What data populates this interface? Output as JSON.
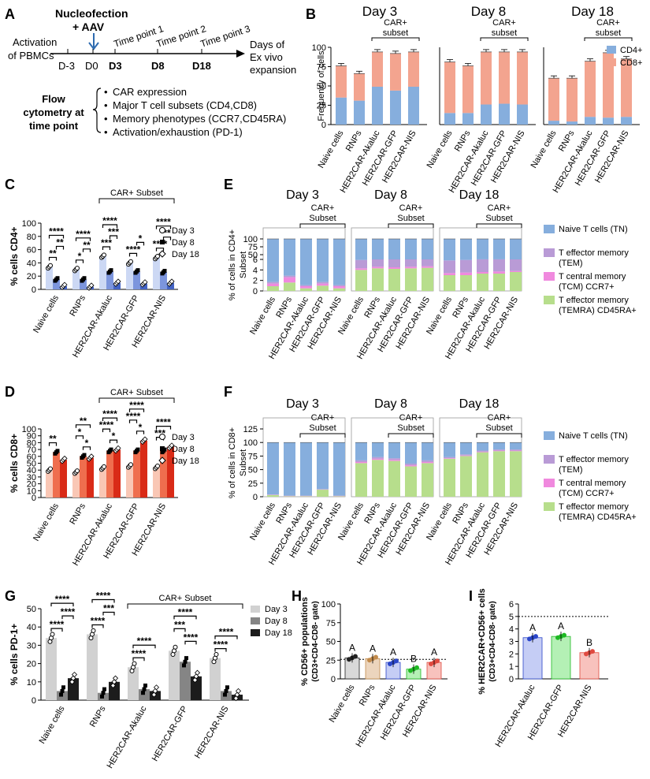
{
  "panel_letters": [
    "A",
    "B",
    "C",
    "D",
    "E",
    "F",
    "G",
    "H",
    "I"
  ],
  "colors": {
    "cd4": "#86aedd",
    "cd8": "#f3a48f",
    "tn": "#86aedd",
    "tem": "#b99bd6",
    "tcm": "#f089de",
    "temra": "#b7de8c",
    "d3_light_blue": "#ccd8f4",
    "d8_mid_blue": "#7c95dd",
    "d18_dark_blue": "#4363c4",
    "d3_light_red": "#f9c7b5",
    "d8_mid_red": "#ef6e4e",
    "d18_dark_red": "#d92b17",
    "gray3": "#d1d1d1",
    "gray8": "#858585",
    "gray18": "#1c1c1c",
    "h_naive": "#d9d9d9",
    "h_rnps": "#ecd5bd",
    "h_akaluc": "#c5cdf5",
    "h_gfp": "#b4f0b5",
    "h_nis": "#f8c2bd",
    "h_naive_dot": "#222",
    "h_rnps_dot": "#c28b4c",
    "h_akaluc_dot": "#2b46c9",
    "h_gfp_dot": "#1fb924",
    "h_nis_dot": "#e04a40"
  },
  "panel_a": {
    "nucleofection": [
      "Nucleofection",
      "+ AAV"
    ],
    "activation": [
      "Activation",
      "of PBMCs"
    ],
    "timepoints": [
      "Time point 1",
      "Time point  2",
      "Time point 3"
    ],
    "days": [
      "D-3",
      "D0",
      "D3",
      "D8",
      "D18"
    ],
    "expansion": [
      "Days of",
      "Ex vivo",
      "expansion"
    ],
    "flow_label": [
      "Flow",
      "cytometry at",
      "time point"
    ],
    "bullets": [
      "CAR expression",
      "Major T cell subsets (CD4,CD8)",
      "Memory phenotypes (CCR7,CD45RA)",
      "Activation/exhaustion (PD-1)"
    ]
  },
  "chart_data": [
    {
      "panel": "B",
      "type": "bar",
      "stacked": true,
      "facets": [
        "Day 3",
        "Day 8",
        "Day 18"
      ],
      "subset_label": [
        "CAR+",
        "subset"
      ],
      "categories": [
        "Naive cells",
        "RNPs",
        "HER2CAR-Akaluc",
        "HER2CAR-GFP",
        "HER2CAR-NIS"
      ],
      "ylabel": "Frequency of cells",
      "ylim": [
        0,
        100
      ],
      "yticks": [
        0,
        25,
        50,
        75,
        100
      ],
      "legend": [
        "CD4+",
        "CD8+"
      ],
      "series": [
        {
          "name": "CD4+",
          "values": [
            [
              35,
              31,
              49,
              44,
              49
            ],
            [
              15,
              15,
              26,
              27,
              26
            ],
            [
              5,
              4,
              10,
              9,
              10
            ]
          ]
        },
        {
          "name": "CD8+",
          "values": [
            [
              41,
              35,
              45,
              48,
              45
            ],
            [
              66,
              61,
              68,
              67,
              68
            ],
            [
              55,
              56,
              72,
              84,
              75
            ]
          ]
        }
      ],
      "totals": [
        [
          76,
          66,
          94,
          92,
          94
        ],
        [
          81,
          76,
          94,
          94,
          94
        ],
        [
          60,
          60,
          82,
          93,
          85
        ]
      ]
    },
    {
      "panel": "C",
      "type": "bar",
      "ylabel": "% cells CD4+",
      "ylim": [
        0,
        100
      ],
      "yticks": [
        0,
        20,
        40,
        60,
        80,
        100
      ],
      "subset_label": "CAR+ Subset",
      "categories": [
        "Naive cells",
        "RNPs",
        "HER2CAR-Akaluc",
        "HER2CAR-GFP",
        "HER2CAR-NIS"
      ],
      "legend": [
        "Day 3",
        "Day 8",
        "Day 18"
      ],
      "series": [
        {
          "name": "Day 3",
          "values": [
            34,
            30,
            50,
            40,
            48
          ]
        },
        {
          "name": "Day 8",
          "values": [
            15,
            15,
            27,
            27,
            26
          ]
        },
        {
          "name": "Day 18",
          "values": [
            5,
            4,
            10,
            9,
            10
          ]
        }
      ],
      "significance": [
        {
          "label": "****",
          "bracket": "Naive cells D3-D18"
        },
        {
          "label": "**",
          "bracket": "Naive cells D8-D18"
        },
        {
          "label": "**",
          "bracket": "Naive cells D3-D8"
        },
        {
          "label": "****",
          "bracket": "RNPs D3-D18"
        },
        {
          "label": "**",
          "bracket": "RNPs D8-D18"
        },
        {
          "label": "*",
          "bracket": "RNPs D3-D8"
        },
        {
          "label": "****",
          "bracket": "HER2CAR-Akaluc D3-D18"
        },
        {
          "label": "***",
          "bracket": "HER2CAR-Akaluc D8-D18"
        },
        {
          "label": "***",
          "bracket": "HER2CAR-Akaluc D3-D8"
        },
        {
          "label": "*",
          "bracket": "HER2CAR-GFP D8-D18"
        },
        {
          "label": "****",
          "bracket": "HER2CAR-GFP D3-D8"
        },
        {
          "label": "****",
          "bracket": "HER2CAR-NIS D3-D18"
        },
        {
          "label": "**",
          "bracket": "HER2CAR-NIS D8-D18"
        },
        {
          "label": "****",
          "bracket": "HER2CAR-NIS D3-D8"
        }
      ]
    },
    {
      "panel": "D",
      "type": "bar",
      "ylabel": "% cells CD8+",
      "ylim": [
        0,
        100
      ],
      "yticks": [
        0,
        10,
        20,
        30,
        40,
        50,
        60,
        70,
        80,
        90,
        100
      ],
      "subset_label": "CAR+ Subset",
      "categories": [
        "Naive cells",
        "RNPs",
        "HER2CAR-Akaluc",
        "HER2CAR-GFP",
        "HER2CAR-NIS"
      ],
      "legend": [
        "Day 3",
        "Day 8",
        "Day 18"
      ],
      "series": [
        {
          "name": "Day 3",
          "values": [
            40,
            37,
            43,
            46,
            44
          ]
        },
        {
          "name": "Day 8",
          "values": [
            66,
            60,
            68,
            68,
            68
          ]
        },
        {
          "name": "Day 18",
          "values": [
            55,
            58,
            70,
            83,
            74
          ]
        }
      ],
      "significance": [
        {
          "label": "**",
          "bracket": "Naive cells D3-D8"
        },
        {
          "label": "**",
          "bracket": "RNPs D3-D18"
        },
        {
          "label": "*",
          "bracket": "RNPs D3-D8"
        },
        {
          "label": "*",
          "bracket": "RNPs D8-D18"
        },
        {
          "label": "****",
          "bracket": "HER2CAR-Akaluc D3-D18"
        },
        {
          "label": "****",
          "bracket": "HER2CAR-Akaluc D3-D8"
        },
        {
          "label": "*",
          "bracket": "HER2CAR-Akaluc D8-D18"
        },
        {
          "label": "****",
          "bracket": "HER2CAR-GFP D3-D18"
        },
        {
          "label": "****",
          "bracket": "HER2CAR-GFP D3-D8"
        },
        {
          "label": "*",
          "bracket": "HER2CAR-GFP D8-D18"
        },
        {
          "label": "****",
          "bracket": "HER2CAR-NIS D3-D18"
        },
        {
          "label": "***",
          "bracket": "HER2CAR-NIS D3-D8"
        }
      ]
    },
    {
      "panel": "E",
      "type": "bar",
      "stacked": true,
      "broken_axis": true,
      "facets": [
        "Day 3",
        "Day 8",
        "Day 18"
      ],
      "subset_label": [
        "CAR+",
        "Subset"
      ],
      "categories": [
        "Naive cells",
        "RNPs",
        "HER2CAR-Akaluc",
        "HER2CAR-GFP",
        "HER2CAR-NIS"
      ],
      "ylabel": [
        "% of cells in CD4+",
        "Subset"
      ],
      "ylim_lower": [
        0,
        6
      ],
      "ylim_upper": [
        50,
        100
      ],
      "yticks": [
        0,
        2,
        4,
        6,
        50,
        75,
        100
      ],
      "legend": [
        [
          "Naive T cells (TN)"
        ],
        [
          "T effector memory",
          "(TEM)"
        ],
        [
          "T central memory",
          "(TCM) CCR7+"
        ],
        [
          "T effector memory",
          "(TEMRA) CD45RA+"
        ]
      ],
      "series_order": [
        "TEMRA",
        "TCM",
        "TEM",
        "TN"
      ],
      "values": [
        [
          [
            0.9,
            0.5,
            0.3,
            98.3
          ],
          [
            1.6,
            1.0,
            0.3,
            97.1
          ],
          [
            0.5,
            0.4,
            0.2,
            98.9
          ],
          [
            1.0,
            0.4,
            0.3,
            98.3
          ],
          [
            0.5,
            0.4,
            0.2,
            98.9
          ]
        ],
        [
          [
            4.0,
            0.3,
            1.6,
            94.1
          ],
          [
            4.3,
            0.3,
            1.5,
            93.9
          ],
          [
            4.2,
            0.3,
            1.5,
            94.0
          ],
          [
            4.3,
            0.3,
            1.5,
            93.9
          ],
          [
            4.4,
            0.3,
            1.4,
            93.9
          ]
        ],
        [
          [
            3.0,
            0.4,
            2.4,
            94.2
          ],
          [
            3.0,
            0.5,
            2.4,
            94.1
          ],
          [
            3.3,
            0.3,
            2.9,
            93.5
          ],
          [
            3.3,
            0.4,
            2.8,
            93.5
          ],
          [
            3.6,
            0.2,
            2.2,
            94.0
          ]
        ]
      ]
    },
    {
      "panel": "F",
      "type": "bar",
      "stacked": true,
      "facets": [
        "Day 3",
        "Day 8",
        "Day 18"
      ],
      "subset_label": [
        "CAR+",
        "Subset"
      ],
      "categories": [
        "Naive cells",
        "RNPs",
        "HER2CAR-Akaluc",
        "HER2CAR-GFP",
        "HER2CAR-NIS"
      ],
      "ylabel": [
        "% of cells in CD8+",
        "Subset"
      ],
      "ylim": [
        0,
        125
      ],
      "yticks": [
        0,
        25,
        50,
        75,
        100,
        125
      ],
      "legend": [
        [
          "Naive T cells (TN)"
        ],
        [
          "T effector memory",
          "(TEM)"
        ],
        [
          "T central memory",
          "(TCM) CCR7+"
        ],
        [
          "T effector memory",
          "(TEMRA) CD45RA+"
        ]
      ],
      "series_order": [
        "TEMRA",
        "TCM",
        "TEM",
        "TN"
      ],
      "values": [
        [
          [
            3,
            0.5,
            0.5,
            96
          ],
          [
            1,
            0.5,
            0.5,
            98
          ],
          [
            1,
            0.5,
            0.5,
            98
          ],
          [
            13,
            0.5,
            0.5,
            86
          ],
          [
            1,
            0.5,
            0.5,
            98
          ]
        ],
        [
          [
            62,
            2,
            3,
            33
          ],
          [
            68,
            2,
            3,
            27
          ],
          [
            66,
            2,
            3,
            29
          ],
          [
            56,
            2,
            3,
            39
          ],
          [
            62,
            2,
            3,
            33
          ]
        ],
        [
          [
            70,
            1,
            2,
            27
          ],
          [
            75,
            1,
            2,
            22
          ],
          [
            82,
            1,
            2,
            15
          ],
          [
            84,
            1,
            2,
            13
          ],
          [
            84,
            1,
            2,
            13
          ]
        ]
      ]
    },
    {
      "panel": "G",
      "type": "bar",
      "ylabel": "% cells PD-1+",
      "ylim": [
        0,
        50
      ],
      "yticks": [
        0,
        10,
        20,
        30,
        40,
        50
      ],
      "subset_label": "CAR+ Subset",
      "categories": [
        "Naive cells",
        "RNPs",
        "HER2CAR-Akaluc",
        "HER2CAR-GFP",
        "HER2CAR-NIS"
      ],
      "legend": [
        "Day 3",
        "Day 8",
        "Day 18"
      ],
      "series": [
        {
          "name": "Day 3",
          "values": [
            34,
            36,
            18,
            27,
            23
          ]
        },
        {
          "name": "Day 8",
          "values": [
            5,
            4,
            6,
            21,
            5
          ]
        },
        {
          "name": "Day 18",
          "values": [
            12,
            10,
            5,
            13,
            3
          ]
        }
      ],
      "significance": [
        {
          "label": "****",
          "bracket": "Naive cells D3-D18"
        },
        {
          "label": "****",
          "bracket": "Naive cells D8-D18"
        },
        {
          "label": "****",
          "bracket": "Naive cells D3-D8"
        },
        {
          "label": "****",
          "bracket": "RNPs D3-D18"
        },
        {
          "label": "***",
          "bracket": "RNPs D8-D18"
        },
        {
          "label": "****",
          "bracket": "RNPs D3-D8"
        },
        {
          "label": "****",
          "bracket": "HER2CAR-Akaluc D3-D18"
        },
        {
          "label": "****",
          "bracket": "HER2CAR-Akaluc D3-D8"
        },
        {
          "label": "****",
          "bracket": "HER2CAR-GFP D3-D18"
        },
        {
          "label": "***",
          "bracket": "HER2CAR-GFP D3-D8"
        },
        {
          "label": "****",
          "bracket": "HER2CAR-GFP D8-D18"
        },
        {
          "label": "****",
          "bracket": "HER2CAR-NIS D3-D18"
        },
        {
          "label": "****",
          "bracket": "HER2CAR-NIS D3-D8"
        }
      ]
    },
    {
      "panel": "H",
      "type": "bar",
      "ylabel": [
        "% CD56+ populations",
        "(CD3+CD4-CD8- gate)"
      ],
      "ylim": [
        0,
        100
      ],
      "yticks": [
        0,
        25,
        50,
        75,
        100
      ],
      "reference_line": 26,
      "categories": [
        "Naive cells",
        "RNPs",
        "HER2CAR-Akaluc",
        "HER2CAR-GFP",
        "HER2CAR-NIS"
      ],
      "values": [
        28,
        27,
        22,
        13,
        22
      ],
      "group_letters": [
        "A",
        "A",
        "A",
        "B",
        "A"
      ]
    },
    {
      "panel": "I",
      "type": "bar",
      "ylabel": [
        "% HER2CAR+CD56+ cells",
        "(CD3+CD4-CD8- gate)"
      ],
      "ylim": [
        0,
        6
      ],
      "yticks": [
        0,
        1,
        2,
        3,
        4,
        5,
        6
      ],
      "reference_line": 5,
      "categories": [
        "HER2CAR-Akaluc",
        "HER2CAR-GFP",
        "HER2CAR-NIS"
      ],
      "values": [
        3.3,
        3.4,
        2.1
      ],
      "group_letters": [
        "A",
        "A",
        "B"
      ]
    }
  ]
}
